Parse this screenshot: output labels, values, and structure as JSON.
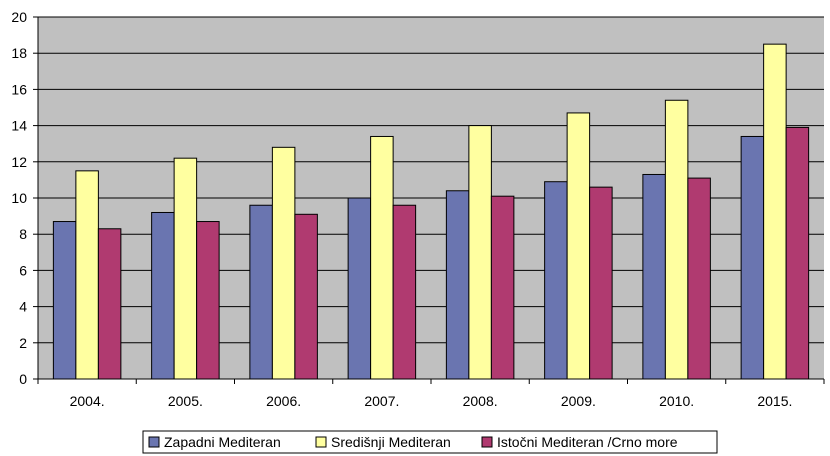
{
  "chart_data": {
    "type": "bar",
    "title": "",
    "xlabel": "",
    "ylabel": "",
    "categories": [
      "2004.",
      "2005.",
      "2006.",
      "2007.",
      "2008.",
      "2009.",
      "2010.",
      "2015."
    ],
    "ylim": [
      0,
      20
    ],
    "yticks": [
      0,
      2,
      4,
      6,
      8,
      10,
      12,
      14,
      16,
      18,
      20
    ],
    "grid": true,
    "legend_position": "bottom",
    "plot_background": "#c0c0c0",
    "series": [
      {
        "name": "Zapadni Mediteran",
        "color": "#6a75b0",
        "values": [
          8.7,
          9.2,
          9.6,
          10.0,
          10.4,
          10.9,
          11.3,
          13.4
        ]
      },
      {
        "name": "Središnji Mediteran",
        "color": "#ffffa0",
        "values": [
          11.5,
          12.2,
          12.8,
          13.4,
          14.0,
          14.7,
          15.4,
          18.5
        ]
      },
      {
        "name": "Istočni Mediteran /Crno more",
        "color": "#b03a70",
        "values": [
          8.3,
          8.7,
          9.1,
          9.6,
          10.1,
          10.6,
          11.1,
          13.9
        ]
      }
    ]
  }
}
